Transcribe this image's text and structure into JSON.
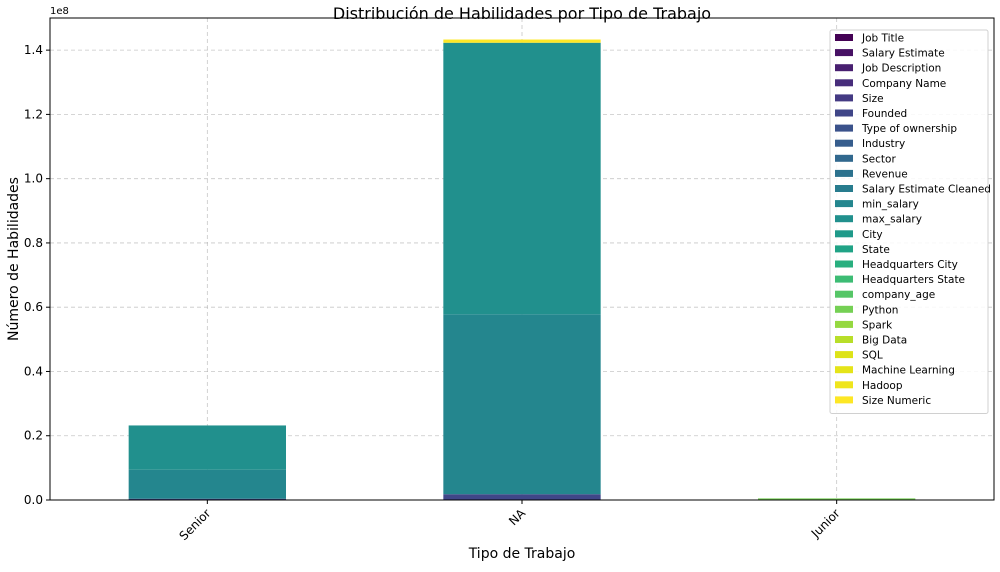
{
  "chart_data": {
    "type": "bar",
    "stacked": true,
    "title": "Distribución de Habilidades por Tipo de Trabajo",
    "xlabel": "Tipo de Trabajo",
    "ylabel": "Número de Habilidades",
    "y_multiplier_label": "1e8",
    "ylim": [
      0,
      150000000
    ],
    "y_ticks": [
      0,
      20000000,
      40000000,
      60000000,
      80000000,
      100000000,
      120000000,
      140000000
    ],
    "y_tick_labels": [
      "0.0",
      "0.2",
      "0.4",
      "0.6",
      "0.8",
      "1.0",
      "1.2",
      "1.4"
    ],
    "grid": true,
    "legend_position": "top-right",
    "categories": [
      "Senior",
      "NA",
      "Junior"
    ],
    "series": [
      {
        "name": "Job Title",
        "color": "#440154",
        "values": [
          0,
          0,
          0
        ]
      },
      {
        "name": "Salary Estimate",
        "color": "#471164",
        "values": [
          0,
          0,
          0
        ]
      },
      {
        "name": "Job Description",
        "color": "#481f70",
        "values": [
          0,
          0,
          0
        ]
      },
      {
        "name": "Company Name",
        "color": "#472d7b",
        "values": [
          0,
          0,
          0
        ]
      },
      {
        "name": "Size",
        "color": "#443a83",
        "values": [
          0,
          0,
          0
        ]
      },
      {
        "name": "Founded",
        "color": "#404688",
        "values": [
          400000,
          1800000,
          0
        ]
      },
      {
        "name": "Type of ownership",
        "color": "#3b528b",
        "values": [
          0,
          0,
          0
        ]
      },
      {
        "name": "Industry",
        "color": "#365d8d",
        "values": [
          0,
          0,
          0
        ]
      },
      {
        "name": "Sector",
        "color": "#31688e",
        "values": [
          0,
          0,
          0
        ]
      },
      {
        "name": "Revenue",
        "color": "#2c728e",
        "values": [
          0,
          0,
          0
        ]
      },
      {
        "name": "Salary Estimate Cleaned",
        "color": "#287c8e",
        "values": [
          0,
          0,
          0
        ]
      },
      {
        "name": "min_salary",
        "color": "#24868e",
        "values": [
          9000000,
          56000000,
          0
        ]
      },
      {
        "name": "max_salary",
        "color": "#21908d",
        "values": [
          13800000,
          84500000,
          0
        ]
      },
      {
        "name": "City",
        "color": "#1f9a8a",
        "values": [
          0,
          0,
          0
        ]
      },
      {
        "name": "State",
        "color": "#20a386",
        "values": [
          0,
          0,
          0
        ]
      },
      {
        "name": "Headquarters City",
        "color": "#29af7f",
        "values": [
          0,
          0,
          0
        ]
      },
      {
        "name": "Headquarters State",
        "color": "#3dbc74",
        "values": [
          0,
          0,
          0
        ]
      },
      {
        "name": "company_age",
        "color": "#56c667",
        "values": [
          0,
          0,
          0
        ]
      },
      {
        "name": "Python",
        "color": "#75d054",
        "values": [
          0,
          0,
          500000
        ]
      },
      {
        "name": "Spark",
        "color": "#95d840",
        "values": [
          0,
          0,
          0
        ]
      },
      {
        "name": "Big Data",
        "color": "#b8de29",
        "values": [
          0,
          0,
          0
        ]
      },
      {
        "name": "SQL",
        "color": "#dde318",
        "values": [
          0,
          0,
          0
        ]
      },
      {
        "name": "Machine Learning",
        "color": "#e5e419",
        "values": [
          0,
          0,
          0
        ]
      },
      {
        "name": "Hadoop",
        "color": "#efe51c",
        "values": [
          0,
          0,
          0
        ]
      },
      {
        "name": "Size Numeric",
        "color": "#fde725",
        "values": [
          0,
          1000000,
          0
        ]
      }
    ]
  }
}
